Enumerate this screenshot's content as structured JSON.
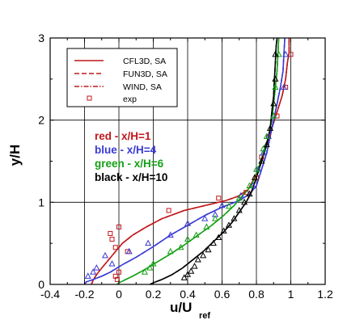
{
  "chart_data": {
    "type": "line",
    "xlabel_main": "u/U",
    "xlabel_sub": "ref",
    "ylabel": "y/H",
    "xlim": [
      -0.4,
      1.2
    ],
    "ylim": [
      0,
      3
    ],
    "xticks": [
      -0.4,
      -0.2,
      0,
      0.2,
      0.4,
      0.6,
      0.8,
      1,
      1.2
    ],
    "xtick_labels": [
      "-0.4",
      "-0.2",
      "0",
      "0.2",
      "0.4",
      "0.6",
      "0.8",
      "1",
      "1.2"
    ],
    "yticks": [
      0,
      1,
      2,
      3
    ],
    "ytick_labels": [
      "0",
      "1",
      "2",
      "3"
    ],
    "grid": true,
    "legend": [
      {
        "label": "CFL3D, SA",
        "style": "solid"
      },
      {
        "label": "FUN3D, SA",
        "style": "dashed"
      },
      {
        "label": "WIND, SA",
        "style": "dashdot"
      },
      {
        "label": "exp",
        "style": "marker"
      }
    ],
    "annotations": [
      {
        "text": "red - x/H=1",
        "color": "#c0171b"
      },
      {
        "text": "blue - x/H=4",
        "color": "#3a3ad6"
      },
      {
        "text": "green - x/H=6",
        "color": "#15a015"
      },
      {
        "text": "black - x/H=10",
        "color": "#000000"
      }
    ],
    "series": [
      {
        "color": "#c0171b",
        "marker": "square",
        "curve": [
          [
            -0.16,
            0
          ],
          [
            -0.15,
            0.05
          ],
          [
            -0.13,
            0.12
          ],
          [
            -0.1,
            0.2
          ],
          [
            -0.06,
            0.3
          ],
          [
            -0.02,
            0.4
          ],
          [
            0.02,
            0.5
          ],
          [
            0.08,
            0.6
          ],
          [
            0.16,
            0.7
          ],
          [
            0.25,
            0.8
          ],
          [
            0.38,
            0.9
          ],
          [
            0.52,
            0.97
          ],
          [
            0.62,
            1.02
          ],
          [
            0.69,
            1.07
          ],
          [
            0.75,
            1.15
          ],
          [
            0.79,
            1.3
          ],
          [
            0.83,
            1.5
          ],
          [
            0.86,
            1.7
          ],
          [
            0.89,
            1.9
          ],
          [
            0.92,
            2.1
          ],
          [
            0.95,
            2.3
          ],
          [
            0.97,
            2.5
          ],
          [
            0.98,
            2.7
          ],
          [
            0.99,
            2.82
          ],
          [
            0.99,
            3
          ]
        ],
        "points": [
          [
            -0.05,
            0.62
          ],
          [
            0.0,
            0.7
          ],
          [
            -0.04,
            0.55
          ],
          [
            -0.02,
            0.45
          ],
          [
            -0.02,
            0.1
          ],
          [
            -0.01,
            0.06
          ],
          [
            0.05,
            0.4
          ],
          [
            0.0,
            0.15
          ],
          [
            0.29,
            0.9
          ],
          [
            0.58,
            1.05
          ],
          [
            0.74,
            1.12
          ],
          [
            0.8,
            1.3
          ],
          [
            0.83,
            1.55
          ],
          [
            0.87,
            1.8
          ],
          [
            0.92,
            2.05
          ],
          [
            0.97,
            2.4
          ],
          [
            1.0,
            2.8
          ]
        ]
      },
      {
        "color": "#3a3ad6",
        "marker": "triangle",
        "curve": [
          [
            -0.2,
            0
          ],
          [
            -0.19,
            0.03
          ],
          [
            -0.15,
            0.06
          ],
          [
            -0.1,
            0.1
          ],
          [
            -0.05,
            0.15
          ],
          [
            0.02,
            0.24
          ],
          [
            0.1,
            0.33
          ],
          [
            0.2,
            0.46
          ],
          [
            0.3,
            0.6
          ],
          [
            0.4,
            0.72
          ],
          [
            0.5,
            0.84
          ],
          [
            0.6,
            0.94
          ],
          [
            0.7,
            1.02
          ],
          [
            0.76,
            1.1
          ],
          [
            0.8,
            1.2
          ],
          [
            0.83,
            1.4
          ],
          [
            0.86,
            1.6
          ],
          [
            0.88,
            1.8
          ],
          [
            0.9,
            2.0
          ],
          [
            0.92,
            2.2
          ],
          [
            0.94,
            2.4
          ],
          [
            0.955,
            2.6
          ],
          [
            0.96,
            2.8
          ],
          [
            0.965,
            3
          ]
        ],
        "points": [
          [
            -0.18,
            0.1
          ],
          [
            -0.15,
            0.15
          ],
          [
            -0.13,
            0.2
          ],
          [
            -0.08,
            0.35
          ],
          [
            -0.04,
            0.25
          ],
          [
            0.06,
            0.4
          ],
          [
            0.17,
            0.5
          ],
          [
            0.3,
            0.6
          ],
          [
            0.4,
            0.74
          ],
          [
            0.5,
            0.8
          ],
          [
            0.56,
            0.85
          ],
          [
            0.6,
            0.96
          ],
          [
            0.71,
            1.08
          ],
          [
            0.78,
            1.2
          ],
          [
            0.81,
            1.4
          ],
          [
            0.84,
            1.6
          ],
          [
            0.87,
            1.8
          ],
          [
            0.9,
            2.05
          ],
          [
            0.96,
            2.4
          ],
          [
            0.97,
            2.8
          ]
        ]
      },
      {
        "color": "#15a015",
        "marker": "triangle",
        "curve": [
          [
            -0.01,
            0
          ],
          [
            0.0,
            0.02
          ],
          [
            0.03,
            0.05
          ],
          [
            0.08,
            0.1
          ],
          [
            0.15,
            0.18
          ],
          [
            0.22,
            0.27
          ],
          [
            0.3,
            0.37
          ],
          [
            0.38,
            0.48
          ],
          [
            0.46,
            0.6
          ],
          [
            0.54,
            0.72
          ],
          [
            0.61,
            0.84
          ],
          [
            0.67,
            0.96
          ],
          [
            0.72,
            1.08
          ],
          [
            0.77,
            1.2
          ],
          [
            0.81,
            1.4
          ],
          [
            0.84,
            1.6
          ],
          [
            0.87,
            1.8
          ],
          [
            0.89,
            2.0
          ],
          [
            0.9,
            2.2
          ],
          [
            0.91,
            2.4
          ],
          [
            0.92,
            2.6
          ],
          [
            0.925,
            2.8
          ],
          [
            0.93,
            3
          ]
        ],
        "points": [
          [
            0.15,
            0.15
          ],
          [
            0.18,
            0.2
          ],
          [
            0.2,
            0.25
          ],
          [
            0.3,
            0.4
          ],
          [
            0.36,
            0.45
          ],
          [
            0.4,
            0.55
          ],
          [
            0.45,
            0.6
          ],
          [
            0.51,
            0.7
          ],
          [
            0.56,
            0.8
          ],
          [
            0.64,
            0.95
          ],
          [
            0.7,
            1.05
          ],
          [
            0.76,
            1.2
          ],
          [
            0.8,
            1.4
          ],
          [
            0.84,
            1.65
          ],
          [
            0.86,
            1.8
          ],
          [
            0.9,
            2.05
          ],
          [
            0.91,
            2.4
          ],
          [
            0.93,
            2.8
          ]
        ]
      },
      {
        "color": "#000000",
        "marker": "triangle",
        "curve": [
          [
            0.18,
            0
          ],
          [
            0.2,
            0.02
          ],
          [
            0.25,
            0.06
          ],
          [
            0.31,
            0.12
          ],
          [
            0.37,
            0.2
          ],
          [
            0.43,
            0.3
          ],
          [
            0.49,
            0.4
          ],
          [
            0.55,
            0.52
          ],
          [
            0.61,
            0.64
          ],
          [
            0.66,
            0.76
          ],
          [
            0.7,
            0.88
          ],
          [
            0.74,
            1.0
          ],
          [
            0.77,
            1.12
          ],
          [
            0.8,
            1.3
          ],
          [
            0.83,
            1.5
          ],
          [
            0.86,
            1.7
          ],
          [
            0.88,
            1.9
          ],
          [
            0.89,
            2.1
          ],
          [
            0.9,
            2.3
          ],
          [
            0.905,
            2.5
          ],
          [
            0.91,
            2.7
          ],
          [
            0.915,
            2.9
          ],
          [
            0.92,
            3
          ]
        ],
        "points": [
          [
            0.38,
            0.08
          ],
          [
            0.4,
            0.12
          ],
          [
            0.42,
            0.16
          ],
          [
            0.44,
            0.22
          ],
          [
            0.46,
            0.3
          ],
          [
            0.49,
            0.35
          ],
          [
            0.52,
            0.42
          ],
          [
            0.55,
            0.5
          ],
          [
            0.58,
            0.57
          ],
          [
            0.61,
            0.65
          ],
          [
            0.64,
            0.72
          ],
          [
            0.67,
            0.8
          ],
          [
            0.7,
            0.9
          ],
          [
            0.73,
            1.0
          ],
          [
            0.76,
            1.1
          ],
          [
            0.79,
            1.3
          ],
          [
            0.83,
            1.5
          ],
          [
            0.86,
            1.7
          ],
          [
            0.88,
            1.9
          ],
          [
            0.9,
            2.2
          ],
          [
            0.91,
            2.5
          ],
          [
            0.91,
            2.8
          ]
        ]
      }
    ]
  }
}
